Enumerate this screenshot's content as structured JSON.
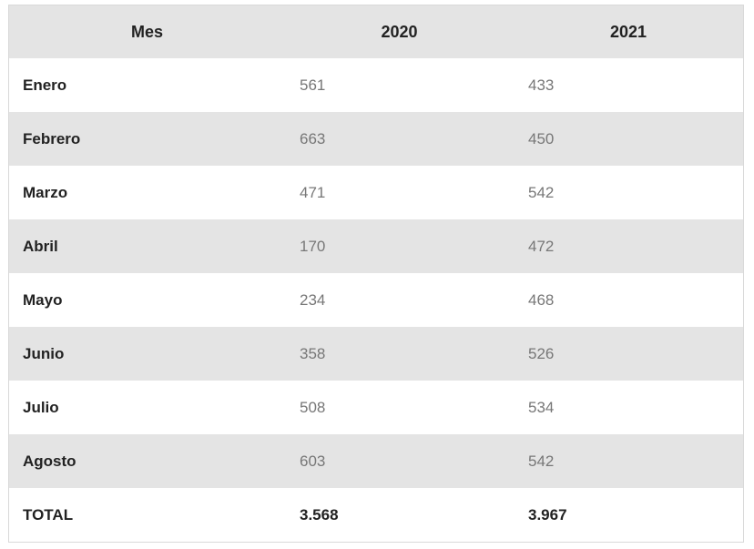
{
  "table": {
    "headers": [
      "Mes",
      "2020",
      "2021"
    ],
    "rows": [
      {
        "month": "Enero",
        "y2020": "561",
        "y2021": "433"
      },
      {
        "month": "Febrero",
        "y2020": "663",
        "y2021": "450"
      },
      {
        "month": "Marzo",
        "y2020": "471",
        "y2021": "542"
      },
      {
        "month": "Abril",
        "y2020": "170",
        "y2021": "472"
      },
      {
        "month": "Mayo",
        "y2020": "234",
        "y2021": "468"
      },
      {
        "month": "Junio",
        "y2020": "358",
        "y2021": "526"
      },
      {
        "month": "Julio",
        "y2020": "508",
        "y2021": "534"
      },
      {
        "month": "Agosto",
        "y2020": "603",
        "y2021": "542"
      }
    ],
    "total": {
      "label": "TOTAL",
      "y2020": "3.568",
      "y2021": "3.967"
    }
  },
  "colors": {
    "header_bg": "#e4e4e4",
    "stripe_bg": "#e4e4e4",
    "row_bg": "#ffffff",
    "label_text": "#222222",
    "value_text": "#777777"
  }
}
